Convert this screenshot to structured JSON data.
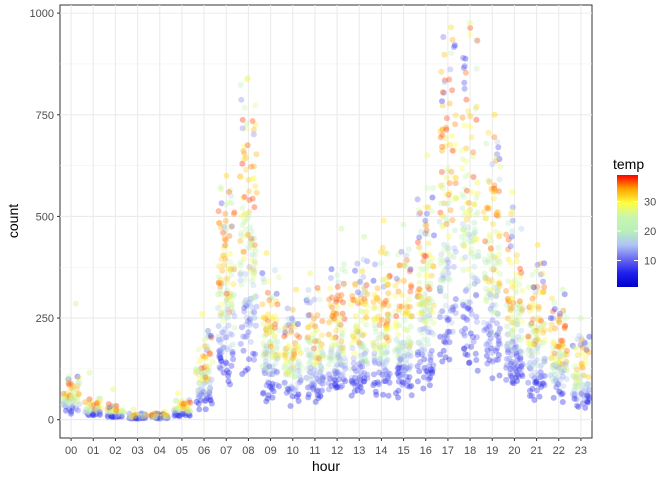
{
  "chart_data": {
    "type": "scatter",
    "xlabel": "hour",
    "ylabel": "count",
    "categories": [
      "00",
      "01",
      "02",
      "03",
      "04",
      "05",
      "06",
      "07",
      "08",
      "09",
      "10",
      "11",
      "12",
      "13",
      "14",
      "15",
      "16",
      "17",
      "18",
      "19",
      "20",
      "21",
      "22",
      "23"
    ],
    "ylim": [
      -45,
      1020
    ],
    "yticks": [
      0,
      250,
      500,
      750,
      1000
    ],
    "grid": true,
    "jitter": true,
    "point_alpha": 0.35,
    "hour_summary": [
      {
        "hour": "00",
        "typical_max": 100,
        "max": 285
      },
      {
        "hour": "01",
        "typical_max": 50,
        "max": 115
      },
      {
        "hour": "02",
        "typical_max": 35,
        "max": 75
      },
      {
        "hour": "03",
        "typical_max": 15,
        "max": 25
      },
      {
        "hour": "04",
        "typical_max": 15,
        "max": 20
      },
      {
        "hour": "05",
        "typical_max": 45,
        "max": 65
      },
      {
        "hour": "06",
        "typical_max": 200,
        "max": 260
      },
      {
        "hour": "07",
        "typical_max": 540,
        "max": 600
      },
      {
        "hour": "08",
        "typical_max": 760,
        "max": 840
      },
      {
        "hour": "09",
        "typical_max": 340,
        "max": 410
      },
      {
        "hour": "10",
        "typical_max": 250,
        "max": 320
      },
      {
        "hour": "11",
        "typical_max": 300,
        "max": 360
      },
      {
        "hour": "12",
        "typical_max": 350,
        "max": 470
      },
      {
        "hour": "13",
        "typical_max": 360,
        "max": 450
      },
      {
        "hour": "14",
        "typical_max": 380,
        "max": 490
      },
      {
        "hour": "15",
        "typical_max": 380,
        "max": 480
      },
      {
        "hour": "16",
        "typical_max": 520,
        "max": 650
      },
      {
        "hour": "17",
        "typical_max": 880,
        "max": 965
      },
      {
        "hour": "18",
        "typical_max": 880,
        "max": 975
      },
      {
        "hour": "19",
        "typical_max": 650,
        "max": 750
      },
      {
        "hour": "20",
        "typical_max": 480,
        "max": 560
      },
      {
        "hour": "21",
        "typical_max": 360,
        "max": 430
      },
      {
        "hour": "22",
        "typical_max": 280,
        "max": 320
      },
      {
        "hour": "23",
        "typical_max": 190,
        "max": 250
      }
    ],
    "legend": {
      "title": "temp",
      "position": "right",
      "range": [
        1,
        39
      ],
      "ticks": [
        10,
        20,
        30
      ],
      "colors": [
        "#0000CD",
        "#2020EE",
        "#6A6AF0",
        "#AFC3F7",
        "#B8F0B8",
        "#C8F5B0",
        "#FFFF40",
        "#FFA500",
        "#FF0000"
      ]
    }
  }
}
